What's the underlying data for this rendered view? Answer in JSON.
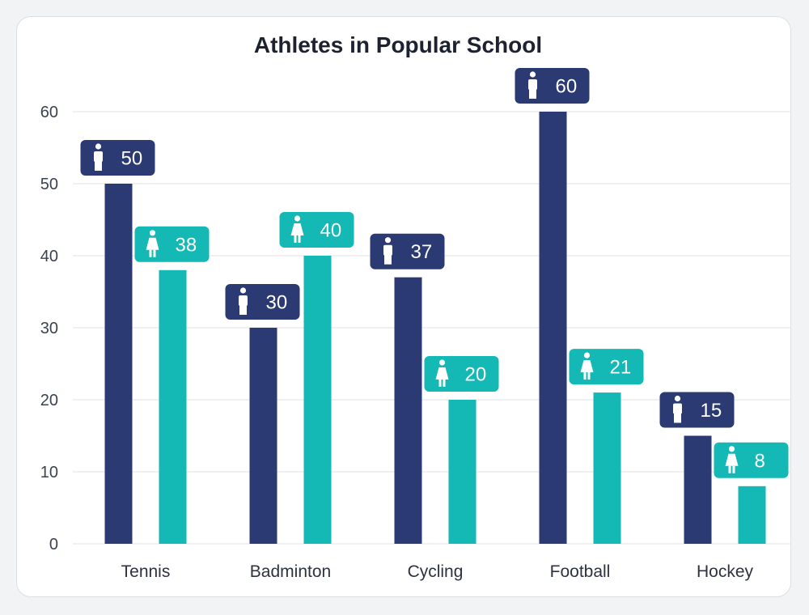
{
  "chart_data": {
    "type": "bar",
    "title": "Athletes in Popular School",
    "xlabel": "",
    "ylabel": "",
    "categories": [
      "Tennis",
      "Badminton",
      "Cycling",
      "Football",
      "Hockey"
    ],
    "series": [
      {
        "key": "male",
        "icon": "male-person-icon",
        "color": "#2b3a73",
        "values": [
          50,
          30,
          37,
          60,
          15
        ]
      },
      {
        "key": "female",
        "icon": "female-person-icon",
        "color": "#14b8b4",
        "values": [
          38,
          40,
          20,
          21,
          8
        ]
      }
    ],
    "ylim": [
      0,
      60
    ],
    "yticks": [
      0,
      10,
      20,
      30,
      40,
      50,
      60
    ],
    "grid": true,
    "legend": "none"
  }
}
